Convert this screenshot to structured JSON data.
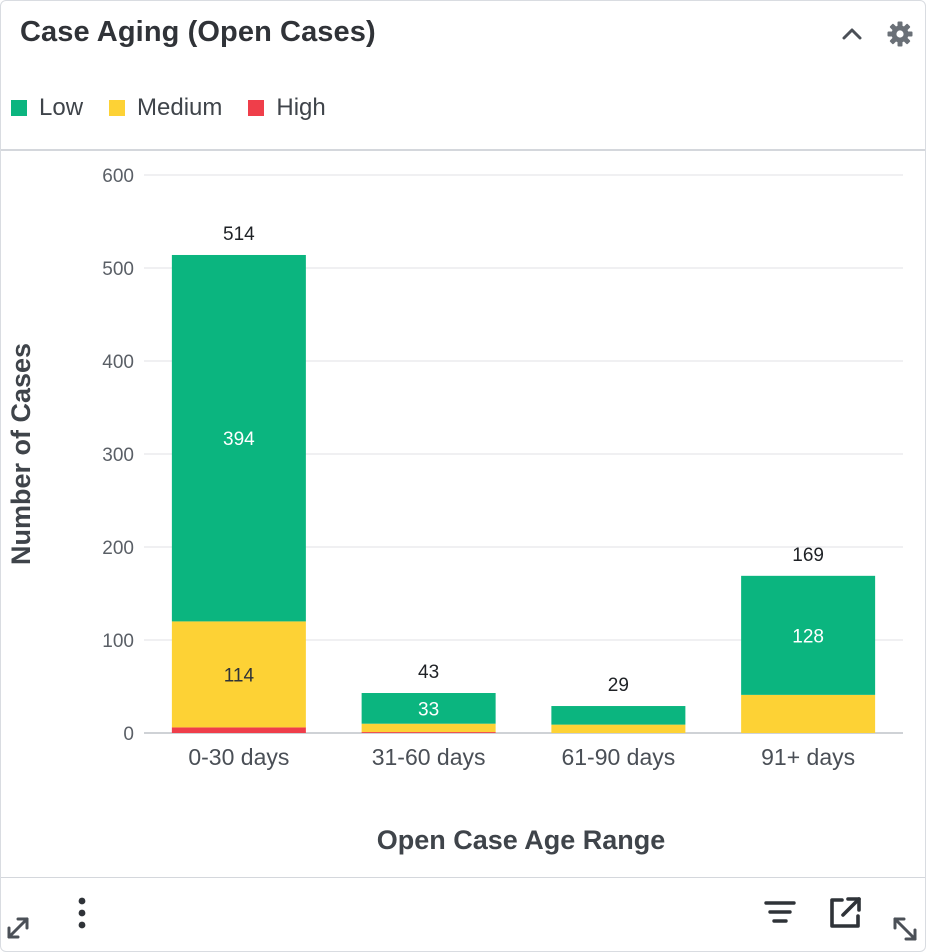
{
  "widget": {
    "title": "Case Aging (Open Cases)",
    "collapse_icon": "chevron-up-icon",
    "settings_icon": "gear-icon"
  },
  "legend": [
    {
      "label": "Low",
      "color": "#0bb57f"
    },
    {
      "label": "Medium",
      "color": "#fdd235"
    },
    {
      "label": "High",
      "color": "#ef3e4a"
    }
  ],
  "chart_data": {
    "type": "bar",
    "stacked": true,
    "title": "",
    "xlabel": "Open Case Age Range",
    "ylabel": "Number of Cases",
    "categories": [
      "0-30 days",
      "31-60 days",
      "61-90 days",
      "91+ days"
    ],
    "ylim": [
      0,
      600
    ],
    "yticks": [
      0,
      100,
      200,
      300,
      400,
      500,
      600
    ],
    "grid": true,
    "legend_position": "top-left",
    "series": [
      {
        "name": "High",
        "color": "#ef3e4a",
        "values": [
          6,
          1,
          0,
          0
        ],
        "labels": [
          "",
          "",
          "",
          ""
        ]
      },
      {
        "name": "Medium",
        "color": "#fdd235",
        "values": [
          114,
          9,
          9,
          41
        ],
        "labels": [
          "114",
          "",
          "",
          ""
        ]
      },
      {
        "name": "Low",
        "color": "#0bb57f",
        "values": [
          394,
          33,
          20,
          128
        ],
        "labels": [
          "394",
          "33",
          "",
          "128"
        ]
      }
    ],
    "totals": [
      514,
      43,
      29,
      169
    ]
  },
  "footer": {
    "expand_left_icon": "diagonal-expand-icon",
    "more_icon": "vertical-dots-icon",
    "filter_icon": "filter-lines-icon",
    "open_icon": "external-link-icon",
    "resize_icon": "diagonal-resize-icon"
  }
}
